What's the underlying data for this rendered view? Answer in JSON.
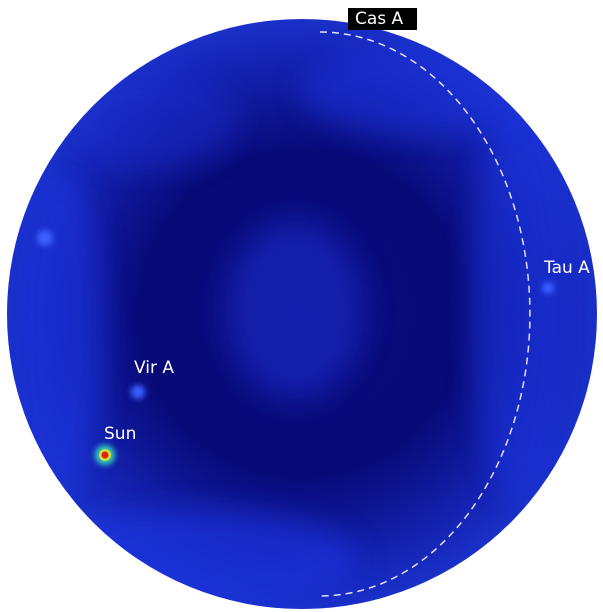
{
  "sources": [
    "Cas A",
    "Tau A",
    "Vir A",
    "Sun"
  ]
}
